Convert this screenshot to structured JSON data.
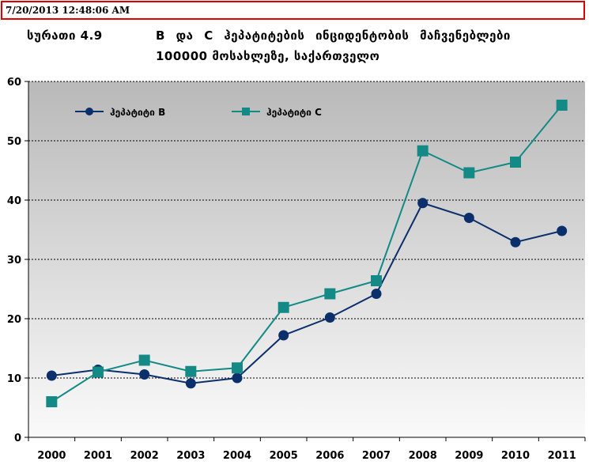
{
  "header": {
    "timestamp": "7/20/2013 12:48:06 AM"
  },
  "chart_data": {
    "type": "line",
    "title_label": "სურათი 4.9",
    "title_line1": "B და C ჰეპატიტების ინციდენტობის მაჩვენებლები",
    "title_line2": "100000 მოსახლეზე, საქართველო",
    "categories": [
      "2000",
      "2001",
      "2002",
      "2003",
      "2004",
      "2005",
      "2006",
      "2007",
      "2008",
      "2009",
      "2010",
      "2011"
    ],
    "ylim": [
      0,
      60
    ],
    "yticks": [
      0,
      10,
      20,
      30,
      40,
      50,
      60
    ],
    "xlabel": "",
    "ylabel": "",
    "legend_position": "top-left",
    "series": [
      {
        "name": "ჰეპატიტი B",
        "color": "#0b2f6b",
        "marker": "circle",
        "values": [
          10.4,
          11.4,
          10.6,
          9.1,
          10.0,
          17.2,
          20.2,
          24.2,
          39.5,
          37.0,
          32.9,
          34.8
        ]
      },
      {
        "name": "ჰეპატიტი C",
        "color": "#138a85",
        "marker": "square",
        "values": [
          6.0,
          11.0,
          13.0,
          11.1,
          11.7,
          21.9,
          24.2,
          26.4,
          48.3,
          44.6,
          46.4,
          56.0
        ]
      }
    ]
  }
}
